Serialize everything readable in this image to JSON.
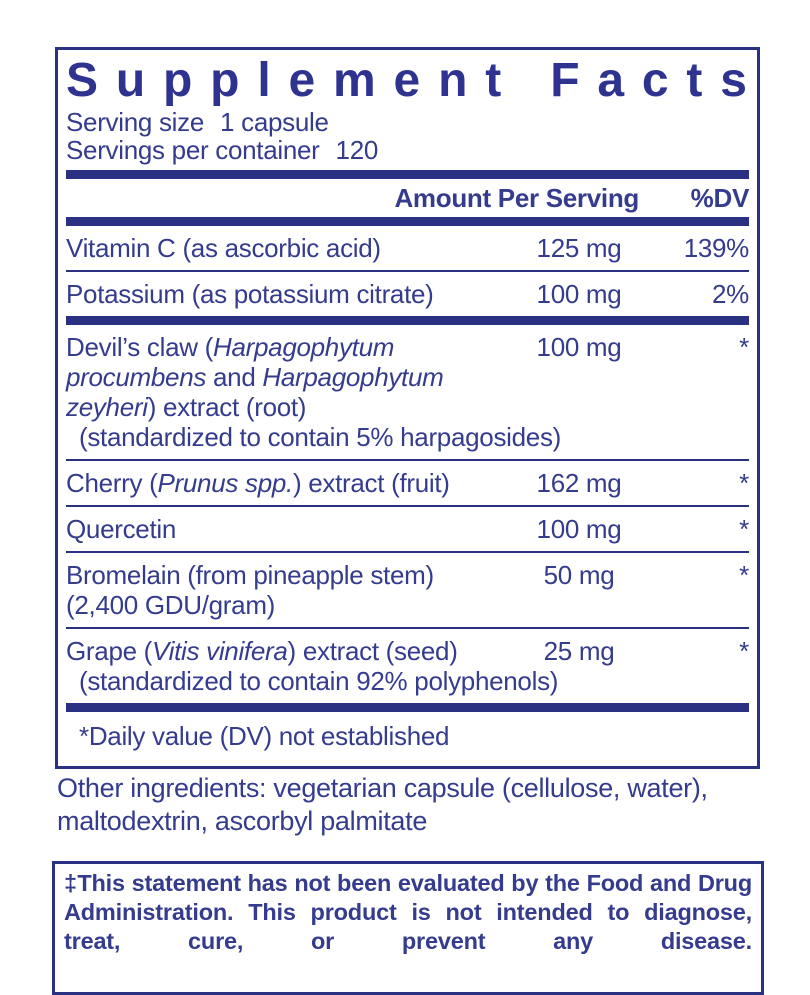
{
  "colors": {
    "ink": "#353b8d",
    "bar": "#2b3182",
    "background": "#ffffff"
  },
  "panel": {
    "title": "Supplement Facts",
    "serving_size_label": "Serving size",
    "serving_size_value": "1 capsule",
    "servings_label": "Servings per container",
    "servings_value": "120",
    "header": {
      "amount": "Amount Per Serving",
      "dv": "%DV"
    },
    "rows": [
      {
        "segments": [
          {
            "text": "Vitamin C (as ascorbic acid)"
          }
        ],
        "amount": "125 mg",
        "dv": "139%",
        "divider_after": "thin"
      },
      {
        "segments": [
          {
            "text": "Potassium (as potassium citrate)"
          }
        ],
        "amount": "100 mg",
        "dv": "2%",
        "divider_after": "thick"
      },
      {
        "segments": [
          {
            "text": "Devil’s claw ("
          },
          {
            "text": "Harpagophytum procumbens",
            "italic": true
          },
          {
            "text": " and "
          },
          {
            "text": "Harpagophytum zeyheri",
            "italic": true
          },
          {
            "text": ") extract (root)"
          }
        ],
        "amount": "100 mg",
        "dv": "*",
        "subline": "(standardized to contain 5% harpagosides)",
        "divider_after": "thin"
      },
      {
        "segments": [
          {
            "text": "Cherry ("
          },
          {
            "text": "Prunus spp.",
            "italic": true
          },
          {
            "text": ") extract (fruit)"
          }
        ],
        "amount": "162 mg",
        "dv": "*",
        "divider_after": "thin"
      },
      {
        "segments": [
          {
            "text": "Quercetin"
          }
        ],
        "amount": "100 mg",
        "dv": "*",
        "divider_after": "thin"
      },
      {
        "segments": [
          {
            "text": "Bromelain (from pineapple stem) (2,400 GDU/gram)"
          }
        ],
        "amount": "50 mg",
        "dv": "*",
        "divider_after": "thin"
      },
      {
        "segments": [
          {
            "text": "Grape ("
          },
          {
            "text": "Vitis vinifera",
            "italic": true
          },
          {
            "text": ") extract (seed)"
          }
        ],
        "amount": "25 mg",
        "dv": "*",
        "subline": "(standardized to contain 92% polyphenols)",
        "divider_after": "thick"
      }
    ],
    "footnote": "*Daily value (DV) not established"
  },
  "other_ingredients": "Other ingredients: vegetarian capsule (cellulose, water), maltodextrin, ascorbyl palmitate",
  "disclaimer": "‡This statement has not been evaluated by the Food and Drug Administration. This product is not intended to diagnose, treat, cure, or prevent any disease."
}
